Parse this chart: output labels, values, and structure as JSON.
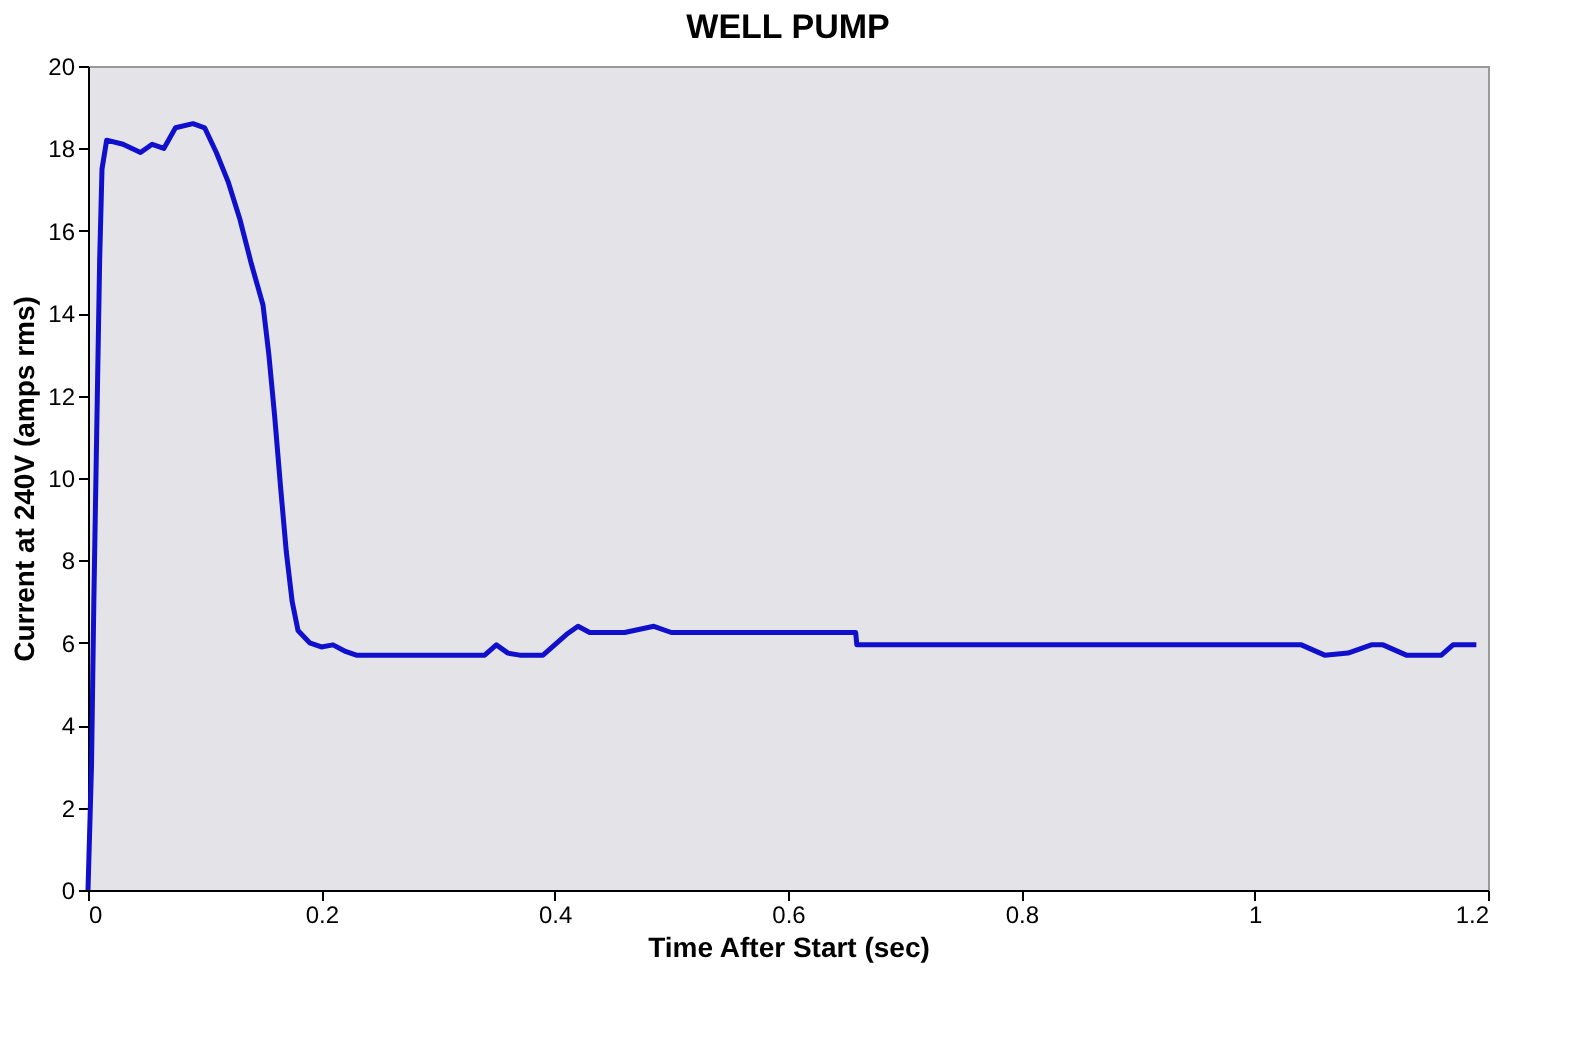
{
  "chart_data": {
    "type": "line",
    "title": "WELL PUMP",
    "xlabel": "Time After Start (sec)",
    "ylabel": "Current at 240V (amps rms)",
    "xlim": [
      0,
      1.2
    ],
    "xticks": [
      0,
      0.2,
      0.4,
      0.6,
      0.8,
      1,
      1.2
    ],
    "ylim": [
      0,
      20
    ],
    "yticks": [
      0,
      2,
      4,
      6,
      8,
      10,
      12,
      14,
      16,
      18,
      20
    ],
    "grid": false,
    "marker": "none",
    "line_style": "solid",
    "series": [
      {
        "color": "#1010cc",
        "x": [
          0,
          0.003,
          0.005,
          0.008,
          0.01,
          0.012,
          0.016,
          0.03,
          0.045,
          0.055,
          0.065,
          0.075,
          0.09,
          0.1,
          0.11,
          0.12,
          0.13,
          0.14,
          0.15,
          0.155,
          0.16,
          0.165,
          0.17,
          0.175,
          0.18,
          0.19,
          0.2,
          0.21,
          0.22,
          0.23,
          0.34,
          0.35,
          0.36,
          0.37,
          0.39,
          0.41,
          0.42,
          0.43,
          0.46,
          0.485,
          0.5,
          0.658,
          0.659,
          1.04,
          1.06,
          1.08,
          1.1,
          1.11,
          1.13,
          1.16,
          1.17,
          1.19
        ],
        "values": [
          0,
          3,
          7,
          12,
          15.3,
          17.5,
          18.2,
          18.1,
          17.9,
          18.1,
          18,
          18.5,
          18.6,
          18.5,
          17.9,
          17.2,
          16.3,
          15.2,
          14.2,
          13,
          11.5,
          9.8,
          8.2,
          7,
          6.3,
          6,
          5.9,
          5.95,
          5.8,
          5.7,
          5.7,
          5.95,
          5.75,
          5.7,
          5.7,
          6.2,
          6.4,
          6.25,
          6.25,
          6.4,
          6.25,
          6.25,
          5.95,
          5.95,
          5.7,
          5.75,
          5.95,
          5.95,
          5.7,
          5.7,
          5.95,
          5.95
        ]
      }
    ]
  }
}
